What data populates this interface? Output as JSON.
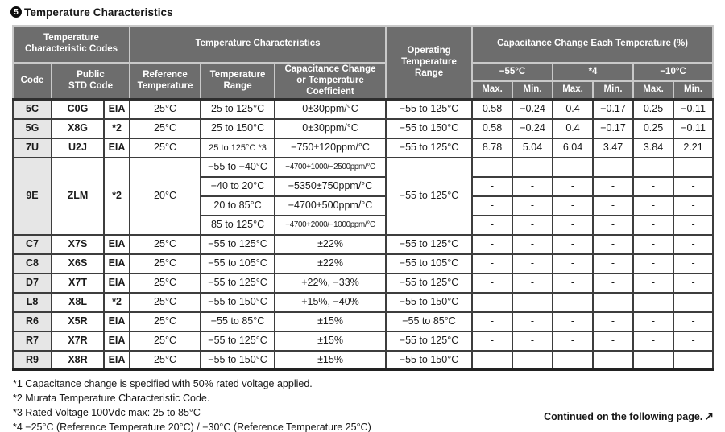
{
  "title": {
    "badge": "5",
    "text": "Temperature Characteristics"
  },
  "colors": {
    "header_bg": "#6d6d6d",
    "header_text": "#ffffff",
    "header_border": "#c9c9c9",
    "body_border": "#3d3d3d",
    "code_column_bg": "#e6e6e6",
    "text": "#1a1a1a"
  },
  "table": {
    "headers": {
      "group_codes": "Temperature\nCharacteristic Codes",
      "group_characteristics": "Temperature Characteristics",
      "operating": "Operating\nTemperature\nRange",
      "group_cap_change": "Capacitance Change Each Temperature (%)",
      "code": "Code",
      "public_std": "Public\nSTD Code",
      "ref_temp": "Reference\nTemperature",
      "temp_range": "Temperature\nRange",
      "cap_change": "Capacitance Change\nor Temperature\nCoefficient",
      "temp_cols": [
        "−55°C",
        "*4",
        "−10°C"
      ],
      "max_label": "Max.",
      "min_label": "Min."
    },
    "rows": [
      {
        "code": "5C",
        "std": "C0G",
        "org": "EIA",
        "ref": "25°C",
        "sub": [
          {
            "range": "25 to 125°C",
            "coeff": "0±30ppm/°C"
          }
        ],
        "op": "−55 to 125°C",
        "values": [
          [
            "0.58",
            "−0.24",
            "0.4",
            "−0.17",
            "0.25",
            "−0.11"
          ]
        ]
      },
      {
        "code": "5G",
        "std": "X8G",
        "org": "*2",
        "ref": "25°C",
        "sub": [
          {
            "range": "25 to 150°C",
            "coeff": "0±30ppm/°C"
          }
        ],
        "op": "−55 to 150°C",
        "values": [
          [
            "0.58",
            "−0.24",
            "0.4",
            "−0.17",
            "0.25",
            "−0.11"
          ]
        ]
      },
      {
        "code": "7U",
        "std": "U2J",
        "org": "EIA",
        "ref": "25°C",
        "sub": [
          {
            "range": "25 to 125°C *3",
            "coeff": "−750±120ppm/°C",
            "tight_range": true
          }
        ],
        "op": "−55 to 125°C",
        "values": [
          [
            "8.78",
            "5.04",
            "6.04",
            "3.47",
            "3.84",
            "2.21"
          ]
        ]
      },
      {
        "code": "9E",
        "std": "ZLM",
        "org": "*2",
        "ref": "20°C",
        "sub": [
          {
            "range": "−55 to −40°C",
            "coeff": "−4700+1000/−2500ppm/°C",
            "small": true
          },
          {
            "range": "−40 to 20°C",
            "coeff": "−5350±750ppm/°C"
          },
          {
            "range": "20 to 85°C",
            "coeff": "−4700±500ppm/°C"
          },
          {
            "range": "85 to 125°C",
            "coeff": "−4700+2000/−1000ppm/°C",
            "small": true
          }
        ],
        "op": "−55 to 125°C",
        "values": [
          [
            "-",
            "-",
            "-",
            "-",
            "-",
            "-"
          ],
          [
            "-",
            "-",
            "-",
            "-",
            "-",
            "-"
          ],
          [
            "-",
            "-",
            "-",
            "-",
            "-",
            "-"
          ],
          [
            "-",
            "-",
            "-",
            "-",
            "-",
            "-"
          ]
        ]
      },
      {
        "code": "C7",
        "std": "X7S",
        "org": "EIA",
        "ref": "25°C",
        "sub": [
          {
            "range": "−55 to 125°C",
            "coeff": "±22%"
          }
        ],
        "op": "−55 to 125°C",
        "values": [
          [
            "-",
            "-",
            "-",
            "-",
            "-",
            "-"
          ]
        ]
      },
      {
        "code": "C8",
        "std": "X6S",
        "org": "EIA",
        "ref": "25°C",
        "sub": [
          {
            "range": "−55 to 105°C",
            "coeff": "±22%"
          }
        ],
        "op": "−55 to 105°C",
        "values": [
          [
            "-",
            "-",
            "-",
            "-",
            "-",
            "-"
          ]
        ]
      },
      {
        "code": "D7",
        "std": "X7T",
        "org": "EIA",
        "ref": "25°C",
        "sub": [
          {
            "range": "−55 to 125°C",
            "coeff": "+22%, −33%"
          }
        ],
        "op": "−55 to 125°C",
        "values": [
          [
            "-",
            "-",
            "-",
            "-",
            "-",
            "-"
          ]
        ]
      },
      {
        "code": "L8",
        "std": "X8L",
        "org": "*2",
        "ref": "25°C",
        "sub": [
          {
            "range": "−55 to 150°C",
            "coeff": "+15%, −40%"
          }
        ],
        "op": "−55 to 150°C",
        "values": [
          [
            "-",
            "-",
            "-",
            "-",
            "-",
            "-"
          ]
        ]
      },
      {
        "code": "R6",
        "std": "X5R",
        "org": "EIA",
        "ref": "25°C",
        "sub": [
          {
            "range": "−55 to 85°C",
            "coeff": "±15%"
          }
        ],
        "op": "−55 to 85°C",
        "values": [
          [
            "-",
            "-",
            "-",
            "-",
            "-",
            "-"
          ]
        ]
      },
      {
        "code": "R7",
        "std": "X7R",
        "org": "EIA",
        "ref": "25°C",
        "sub": [
          {
            "range": "−55 to 125°C",
            "coeff": "±15%"
          }
        ],
        "op": "−55 to 125°C",
        "values": [
          [
            "-",
            "-",
            "-",
            "-",
            "-",
            "-"
          ]
        ]
      },
      {
        "code": "R9",
        "std": "X8R",
        "org": "EIA",
        "ref": "25°C",
        "sub": [
          {
            "range": "−55 to 150°C",
            "coeff": "±15%"
          }
        ],
        "op": "−55 to 150°C",
        "values": [
          [
            "-",
            "-",
            "-",
            "-",
            "-",
            "-"
          ]
        ]
      }
    ]
  },
  "footnotes": [
    "*1 Capacitance change is specified with 50% rated voltage applied.",
    "*2 Murata Temperature Characteristic Code.",
    "*3 Rated Voltage 100Vdc max: 25 to 85°C",
    "*4 −25°C (Reference Temperature 20°C) / −30°C (Reference Temperature 25°C)"
  ],
  "continued": {
    "text": "Continued on the following page.",
    "arrow": "↗"
  }
}
